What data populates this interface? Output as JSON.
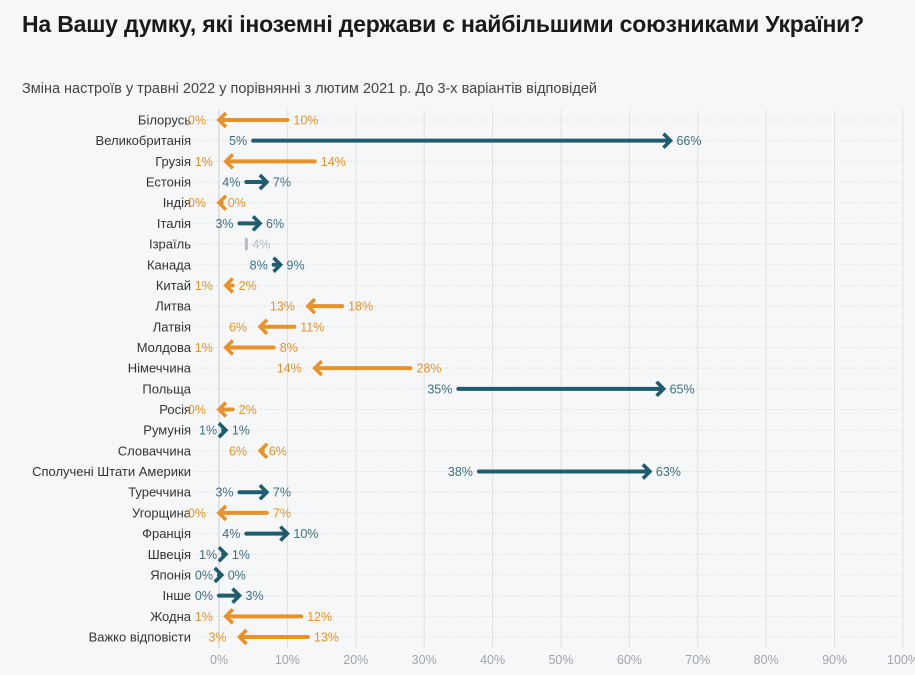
{
  "header": {
    "title": "На Вашу думку, які іноземні держави є найбільшими союзниками України?",
    "subtitle": "Зміна настроїв у травні 2022 у порівнянні з лютим 2021 р. До 3-х варіантів відповідей"
  },
  "colors": {
    "increase": "#1f5c6e",
    "increase_text": "#3d6f80",
    "decrease": "#e8922a",
    "decrease_text": "#e8922a",
    "no_prior": "#b8bcc0",
    "gridline": "#dfe2e5",
    "zero_line": "#c9ccd0"
  },
  "chart_data": {
    "type": "arrow",
    "title": "На Вашу думку, які іноземні держави є найбільшими союзниками України?",
    "subtitle": "Зміна настроїв у травні 2022 у порівнянні з лютим 2021 р. До 3-х варіантів відповідей",
    "xlabel": "",
    "ylabel": "",
    "xlim": [
      0,
      100
    ],
    "x_ticks": [
      "0%",
      "10%",
      "20%",
      "30%",
      "40%",
      "50%",
      "60%",
      "70%",
      "80%",
      "90%",
      "100%"
    ],
    "x_tick_values": [
      0,
      10,
      20,
      30,
      40,
      50,
      60,
      70,
      80,
      90,
      100
    ],
    "grid": true,
    "series": [
      {
        "name": "лютий 2021",
        "key": "from"
      },
      {
        "name": "травень 2022",
        "key": "to"
      }
    ],
    "categories": [
      "Білорусь",
      "Великобританія",
      "Грузія",
      "Естонія",
      "Індія",
      "Італія",
      "Ізраїль",
      "Канада",
      "Китай",
      "Литва",
      "Латвія",
      "Молдова",
      "Німеччина",
      "Польща",
      "Росія",
      "Румунія",
      "Словаччина",
      "Сполучені Штати Америки",
      "Туреччина",
      "Угорщина",
      "Франція",
      "Швеція",
      "Японія",
      "Інше",
      "Жодна",
      "Важко відповісти"
    ],
    "rows": [
      {
        "label": "Білорусь",
        "from": 10,
        "to": 0,
        "from_label": "10%",
        "to_label": "0%",
        "direction": "decrease"
      },
      {
        "label": "Великобританія",
        "from": 5,
        "to": 66,
        "from_label": "5%",
        "to_label": "66%",
        "direction": "increase"
      },
      {
        "label": "Грузія",
        "from": 14,
        "to": 1,
        "from_label": "14%",
        "to_label": "1%",
        "direction": "decrease"
      },
      {
        "label": "Естонія",
        "from": 4,
        "to": 7,
        "from_label": "4%",
        "to_label": "7%",
        "direction": "increase"
      },
      {
        "label": "Індія",
        "from": 0.4,
        "to": 0,
        "from_label": "0%",
        "to_label": "0%",
        "direction": "decrease"
      },
      {
        "label": "Італія",
        "from": 3,
        "to": 6,
        "from_label": "3%",
        "to_label": "6%",
        "direction": "increase"
      },
      {
        "label": "Ізраїль",
        "from": null,
        "to": 4,
        "from_label": "",
        "to_label": "4%",
        "direction": "none"
      },
      {
        "label": "Канада",
        "from": 8,
        "to": 9,
        "from_label": "8%",
        "to_label": "9%",
        "direction": "increase"
      },
      {
        "label": "Китай",
        "from": 2,
        "to": 1,
        "from_label": "2%",
        "to_label": "1%",
        "direction": "decrease"
      },
      {
        "label": "Литва",
        "from": 18,
        "to": 13,
        "from_label": "18%",
        "to_label": "13%",
        "direction": "decrease"
      },
      {
        "label": "Латвія",
        "from": 11,
        "to": 6,
        "from_label": "11%",
        "to_label": "6%",
        "direction": "decrease"
      },
      {
        "label": "Молдова",
        "from": 8,
        "to": 1,
        "from_label": "8%",
        "to_label": "1%",
        "direction": "decrease"
      },
      {
        "label": "Німеччина",
        "from": 28,
        "to": 14,
        "from_label": "28%",
        "to_label": "14%",
        "direction": "decrease"
      },
      {
        "label": "Польща",
        "from": 35,
        "to": 65,
        "from_label": "35%",
        "to_label": "65%",
        "direction": "increase"
      },
      {
        "label": "Росія",
        "from": 2,
        "to": 0,
        "from_label": "2%",
        "to_label": "0%",
        "direction": "decrease"
      },
      {
        "label": "Румунія",
        "from": 0.6,
        "to": 1,
        "from_label": "1%",
        "to_label": "1%",
        "direction": "increase"
      },
      {
        "label": "Словаччина",
        "from": 6.4,
        "to": 6,
        "from_label": "6%",
        "to_label": "6%",
        "direction": "decrease"
      },
      {
        "label": "Сполучені Штати Америки",
        "from": 38,
        "to": 63,
        "from_label": "38%",
        "to_label": "63%",
        "direction": "increase"
      },
      {
        "label": "Туреччина",
        "from": 3,
        "to": 7,
        "from_label": "3%",
        "to_label": "7%",
        "direction": "increase"
      },
      {
        "label": "Угорщина",
        "from": 7,
        "to": 0,
        "from_label": "7%",
        "to_label": "0%",
        "direction": "decrease"
      },
      {
        "label": "Франція",
        "from": 4,
        "to": 10,
        "from_label": "4%",
        "to_label": "10%",
        "direction": "increase"
      },
      {
        "label": "Швеція",
        "from": 0.6,
        "to": 1,
        "from_label": "1%",
        "to_label": "1%",
        "direction": "increase"
      },
      {
        "label": "Японія",
        "from": 0,
        "to": 0.4,
        "from_label": "0%",
        "to_label": "0%",
        "direction": "increase"
      },
      {
        "label": "Інше",
        "from": 0,
        "to": 3,
        "from_label": "0%",
        "to_label": "3%",
        "direction": "increase"
      },
      {
        "label": "Жодна",
        "from": 12,
        "to": 1,
        "from_label": "12%",
        "to_label": "1%",
        "direction": "decrease"
      },
      {
        "label": "Важко відповісти",
        "from": 13,
        "to": 3,
        "from_label": "13%",
        "to_label": "3%",
        "direction": "decrease"
      }
    ]
  }
}
